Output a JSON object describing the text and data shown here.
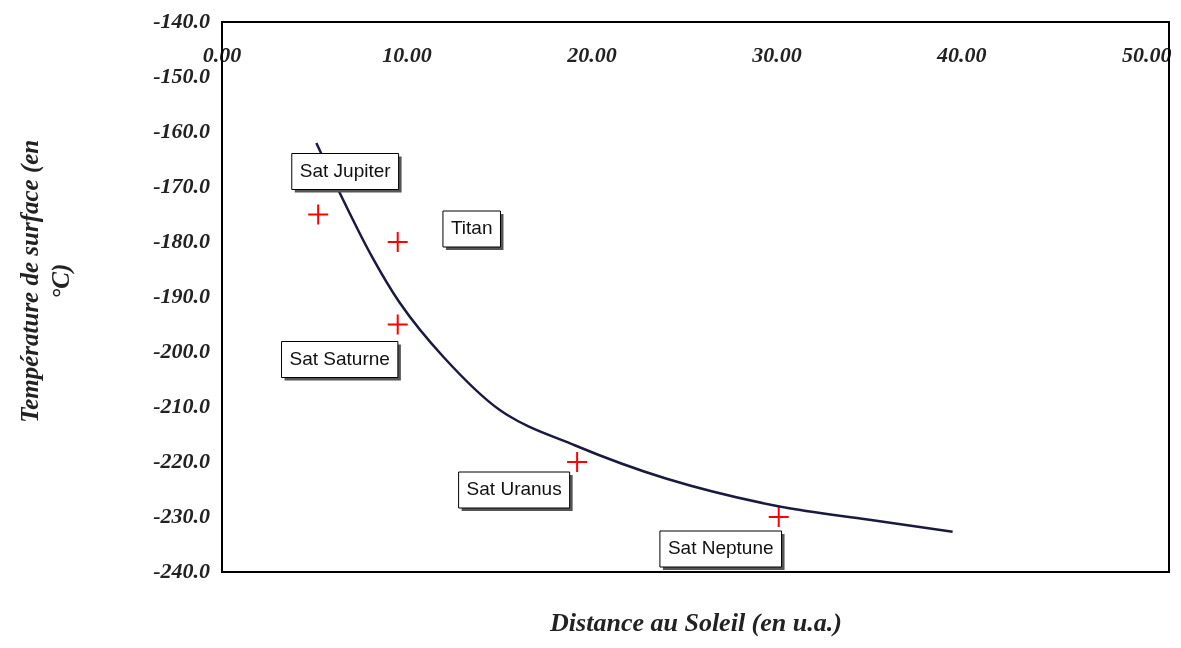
{
  "chart_data": {
    "type": "scatter",
    "xlabel": "Distance au Soleil (en u.a.)",
    "ylabel": "Température de surface (en °C)",
    "xlim": [
      0,
      51.2
    ],
    "xticks": [
      {
        "value": 0,
        "label": "0.00"
      },
      {
        "value": 10,
        "label": "10.00"
      },
      {
        "value": 20,
        "label": "20.00"
      },
      {
        "value": 30,
        "label": "30.00"
      },
      {
        "value": 40,
        "label": "40.00"
      },
      {
        "value": 50,
        "label": "50.00"
      }
    ],
    "ylim": [
      -240,
      -140
    ],
    "yticks": [
      {
        "value": -240,
        "label": "-240.0"
      },
      {
        "value": -230,
        "label": "-230.0"
      },
      {
        "value": -220,
        "label": "-220.0"
      },
      {
        "value": -210,
        "label": "-210.0"
      },
      {
        "value": -200,
        "label": "-200.0"
      },
      {
        "value": -190,
        "label": "-190.0"
      },
      {
        "value": -180,
        "label": "-180.0"
      },
      {
        "value": -170,
        "label": "-170.0"
      },
      {
        "value": -160,
        "label": "-160.0"
      },
      {
        "value": -150,
        "label": "-150.0"
      },
      {
        "value": -140,
        "label": "-140.0"
      }
    ],
    "grid": false,
    "legend": false,
    "series": [
      {
        "type": "line",
        "color": "#1a1a40",
        "marker": "none",
        "x": [
          5.1,
          6.5,
          8,
          9.6,
          12,
          15,
          19.1,
          24,
          30,
          35,
          39.5
        ],
        "values": [
          -162,
          -172,
          -182,
          -191,
          -201,
          -210.5,
          -217,
          -223,
          -228,
          -230.5,
          -232.7
        ]
      },
      {
        "color": "#ff0000",
        "marker": "cross",
        "x": [
          5.2,
          9.5,
          9.5,
          19.2,
          30.1
        ],
        "values": [
          -175,
          -180,
          -195,
          -220,
          -230
        ]
      }
    ],
    "annotations": [
      "Sat Jupiter",
      "Titan",
      "Sat Saturne",
      "Sat Uranus",
      "Sat Neptune"
    ]
  }
}
